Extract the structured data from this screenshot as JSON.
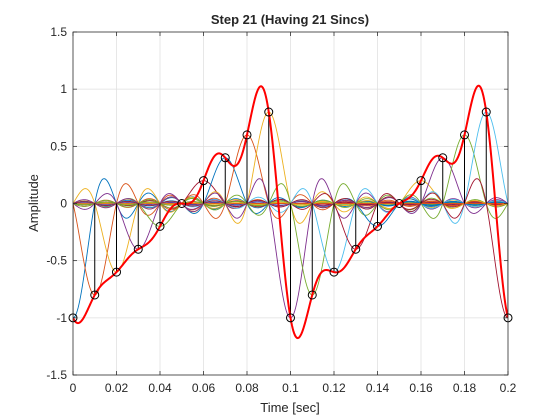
{
  "chart_data": {
    "type": "line",
    "title": "Step 21 (Having 21 Sincs)",
    "xlabel": "Time [sec]",
    "ylabel": "Amplitude",
    "xlim": [
      0,
      0.2
    ],
    "ylim": [
      -1.5,
      1.5
    ],
    "xticks": [
      0,
      0.02,
      0.04,
      0.06,
      0.08,
      0.1,
      0.12,
      0.14,
      0.16,
      0.18,
      0.2
    ],
    "xtick_labels": [
      "0",
      "0.02",
      "0.04",
      "0.06",
      "0.08",
      "0.1",
      "0.12",
      "0.14",
      "0.16",
      "0.18",
      "0.2"
    ],
    "yticks": [
      -1.5,
      -1,
      -0.5,
      0,
      0.5,
      1,
      1.5
    ],
    "ytick_labels": [
      "-1.5",
      "-1",
      "-0.5",
      "0",
      "0.5",
      "1",
      "1.5"
    ],
    "grid": true,
    "legend": "none",
    "sample_interval": 0.01,
    "samples": {
      "t": [
        0,
        0.01,
        0.02,
        0.03,
        0.04,
        0.05,
        0.06,
        0.07,
        0.08,
        0.09,
        0.1,
        0.11,
        0.12,
        0.13,
        0.14,
        0.15,
        0.16,
        0.17,
        0.18,
        0.19,
        0.2
      ],
      "y": [
        -1,
        -0.8,
        -0.6,
        -0.4,
        -0.2,
        0,
        0.2,
        0.4,
        0.6,
        0.8,
        -1,
        -0.8,
        -0.6,
        -0.4,
        -0.2,
        0,
        0.2,
        0.4,
        0.6,
        0.8,
        -1
      ]
    },
    "sinc_colors": [
      "#0072BD",
      "#D95319",
      "#EDB120",
      "#7E2F8E",
      "#77AC30",
      "#4DBEEE",
      "#A2142F"
    ],
    "reconstruction_color": "#FF0000",
    "stem_color": "#000000"
  }
}
